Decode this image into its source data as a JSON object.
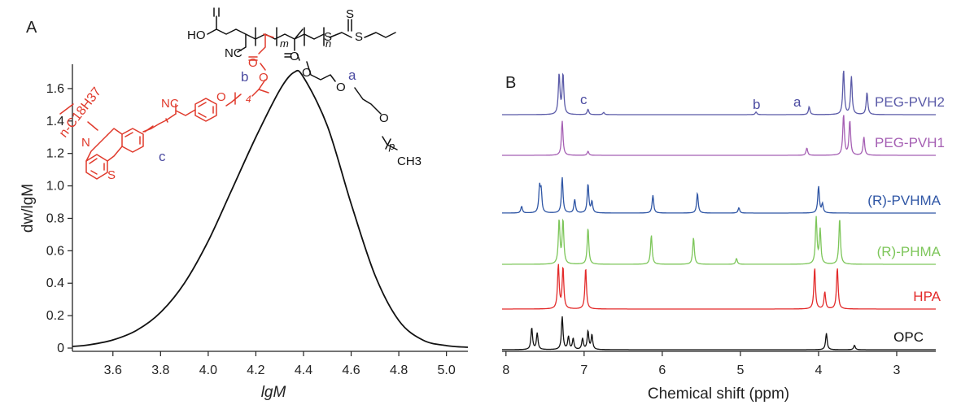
{
  "panel_a": {
    "label": "A",
    "xlabel": "lgM",
    "ylabel": "dw/lgM",
    "struct": {
      "ho": "HO",
      "nc1": "NC",
      "m": "m",
      "n": "n",
      "s": "S",
      "o": "O",
      "a": "a",
      "b": "b",
      "c": "c",
      "four": "4",
      "nc2": "NC",
      "chain": "n-C18H37",
      "N": "N",
      "ch3": "CH3",
      "p": "p"
    }
  },
  "panel_b": {
    "label": "B",
    "xlabel": "Chemical shift (ppm)",
    "peak_letters": [
      "c",
      "b",
      "a"
    ]
  },
  "chart_data": [
    {
      "type": "line",
      "panel": "A",
      "title": "",
      "xlabel": "lgM",
      "ylabel": "dw/lgM",
      "xlim": [
        3.43,
        5.09
      ],
      "ylim": [
        -0.02,
        1.75
      ],
      "xticks": [
        3.6,
        3.8,
        4.0,
        4.2,
        4.4,
        4.6,
        4.8,
        5.0
      ],
      "yticks": [
        0,
        0.2,
        0.4,
        0.6,
        0.8,
        1.0,
        1.2,
        1.4,
        1.6
      ],
      "x": [
        3.43,
        3.5,
        3.6,
        3.7,
        3.8,
        3.9,
        4.0,
        4.1,
        4.2,
        4.3,
        4.36,
        4.4,
        4.5,
        4.6,
        4.7,
        4.8,
        4.9,
        5.0,
        5.09
      ],
      "y": [
        0.01,
        0.02,
        0.05,
        0.11,
        0.22,
        0.4,
        0.66,
        0.98,
        1.3,
        1.59,
        1.7,
        1.67,
        1.37,
        0.89,
        0.45,
        0.17,
        0.05,
        0.015,
        0.005
      ],
      "color": "#111111"
    },
    {
      "type": "line",
      "panel": "B",
      "title": "",
      "xlabel": "Chemical shift (ppm)",
      "xlim": [
        8.05,
        2.5
      ],
      "xticks": [
        8,
        7,
        6,
        5,
        4,
        3
      ],
      "series": [
        {
          "name": "PEG-PVH2",
          "color": "#5b5ba8",
          "peaks": [
            [
              7.32,
              0.9
            ],
            [
              7.27,
              0.9
            ],
            [
              6.95,
              0.12
            ],
            [
              6.75,
              0.05
            ],
            [
              4.8,
              0.06
            ],
            [
              4.12,
              0.18
            ],
            [
              3.68,
              1.0
            ],
            [
              3.58,
              0.85
            ],
            [
              3.38,
              0.5
            ]
          ]
        },
        {
          "name": "PEG-PVH1",
          "color": "#a55fb3",
          "peaks": [
            [
              7.28,
              0.85
            ],
            [
              6.95,
              0.1
            ],
            [
              4.15,
              0.18
            ],
            [
              3.68,
              1.0
            ],
            [
              3.6,
              0.85
            ],
            [
              3.42,
              0.45
            ]
          ]
        },
        {
          "name": "(R)-PVHMA",
          "color": "#2f56a5",
          "peaks": [
            [
              7.8,
              0.15
            ],
            [
              7.57,
              0.55
            ],
            [
              7.55,
              0.45
            ],
            [
              7.28,
              0.8
            ],
            [
              7.12,
              0.3
            ],
            [
              6.95,
              0.65
            ],
            [
              6.9,
              0.25
            ],
            [
              6.12,
              0.4
            ],
            [
              5.55,
              0.45
            ],
            [
              5.02,
              0.12
            ],
            [
              4.0,
              0.6
            ],
            [
              3.95,
              0.2
            ]
          ]
        },
        {
          "name": "(R)-PHMA",
          "color": "#7dc65a",
          "peaks": [
            [
              7.32,
              0.9
            ],
            [
              7.27,
              0.9
            ],
            [
              6.95,
              0.75
            ],
            [
              6.14,
              0.6
            ],
            [
              5.6,
              0.55
            ],
            [
              5.05,
              0.12
            ],
            [
              4.03,
              0.95
            ],
            [
              3.98,
              0.7
            ],
            [
              3.73,
              0.95
            ]
          ]
        },
        {
          "name": "HPA",
          "color": "#e32b2b",
          "peaks": [
            [
              7.33,
              0.9
            ],
            [
              7.27,
              0.85
            ],
            [
              6.98,
              0.85
            ],
            [
              4.05,
              0.85
            ],
            [
              3.92,
              0.35
            ],
            [
              3.76,
              0.85
            ]
          ]
        },
        {
          "name": "OPC",
          "color": "#111111",
          "peaks": [
            [
              7.67,
              0.6
            ],
            [
              7.6,
              0.45
            ],
            [
              7.28,
              0.9
            ],
            [
              7.2,
              0.35
            ],
            [
              7.14,
              0.3
            ],
            [
              7.02,
              0.3
            ],
            [
              6.95,
              0.5
            ],
            [
              6.9,
              0.4
            ],
            [
              3.9,
              0.45
            ],
            [
              3.54,
              0.12
            ]
          ]
        }
      ]
    }
  ]
}
